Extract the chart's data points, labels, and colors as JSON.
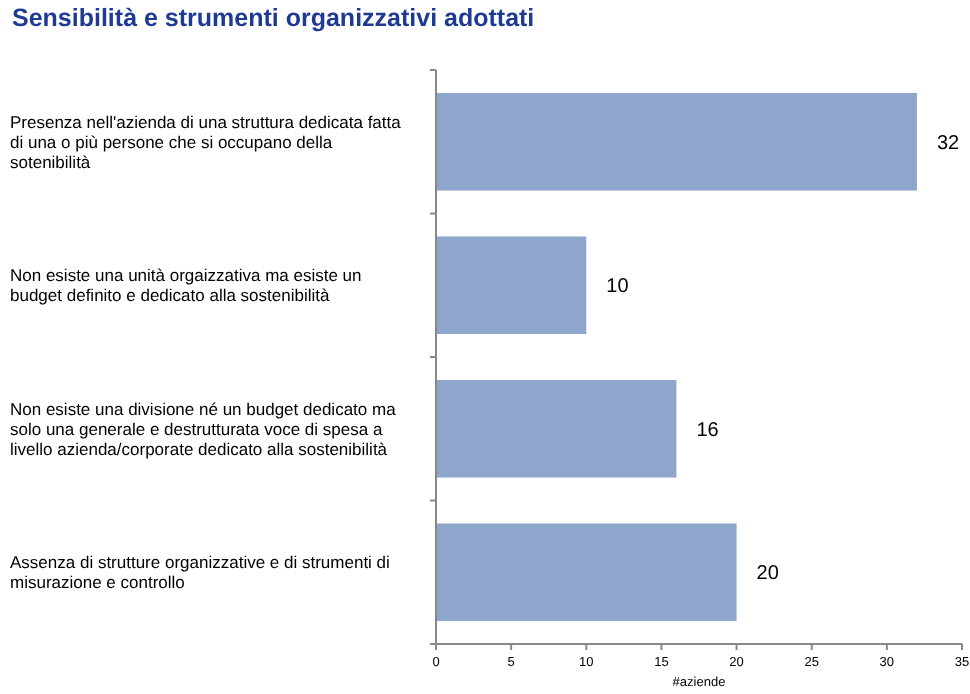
{
  "chart_data": {
    "type": "bar",
    "orientation": "horizontal",
    "title": "Sensibilità e strumenti organizzativi adottati",
    "xlabel": "#aziende",
    "categories": [
      "Presenza nell'azienda di una struttura dedicata fatta di una o più persone che si occupano della sotenibilità",
      "Non esiste una unità orgaizzativa ma esiste un budget definito e dedicato alla sostenibilità",
      "Non esiste una divisione né un budget dedicato ma solo una generale e destrutturata voce di spesa a livello azienda/corporate dedicato alla sostenibilità",
      "Assenza di strutture organizzative e di strumenti di misurazione e controllo"
    ],
    "values": [
      32,
      10,
      16,
      20
    ],
    "color": "#8ea6cb",
    "xlim": [
      0,
      35
    ],
    "xticks": [
      0,
      5,
      10,
      15,
      20,
      25,
      30,
      35
    ],
    "data_labels": true,
    "grid": false
  }
}
